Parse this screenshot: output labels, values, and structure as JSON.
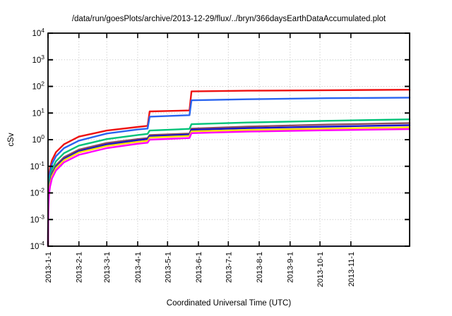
{
  "title": "/data/run/goesPlots/archive/2013-12-29/flux/../bryn/366daysEarthDataAccumulated.plot",
  "colors": {
    "background": "#ffffff",
    "frame": "#000000",
    "grid": "#bdbdbd",
    "text": "#000000"
  },
  "chart_data": {
    "type": "line",
    "title": "/data/run/goesPlots/archive/2013-12-29/flux/../bryn/366daysEarthDataAccumulated.plot",
    "xlabel": "Coordinated Universal Time (UTC)",
    "ylabel": "cSv",
    "grid": true,
    "legend": "none",
    "x_axis": {
      "start_label": "2013-1-1",
      "end_day": 363,
      "tick_days": [
        0,
        31,
        59,
        90,
        120,
        151,
        181,
        212,
        243,
        273,
        304
      ],
      "tick_labels": [
        "2013-1-1",
        "2013-2-1",
        "2013-3-1",
        "2013-4-1",
        "2013-5-1",
        "2013-6-1",
        "2013-7-1",
        "2013-8-1",
        "2013-9-1",
        "2013-10-1",
        "2013-11-1"
      ]
    },
    "y_axis": {
      "scale": "log10",
      "min": 0.0001,
      "max": 10000,
      "tick_exponents": [
        4,
        3,
        2,
        1,
        0,
        -1,
        -2,
        -3,
        -4
      ],
      "unit": "cSv"
    },
    "step_days": [
      101,
      143
    ],
    "series": [
      {
        "name": "red",
        "color": "#ee1111",
        "points": [
          [
            0.003,
            0.0001
          ],
          [
            0.25,
            0.01
          ],
          [
            1,
            0.042
          ],
          [
            2,
            0.084
          ],
          [
            4,
            0.17
          ],
          [
            8,
            0.34
          ],
          [
            16,
            0.67
          ],
          [
            31,
            1.3
          ],
          [
            59,
            2.2
          ],
          [
            90,
            3.0
          ],
          [
            100,
            3.3
          ],
          [
            102,
            11.5
          ],
          [
            142,
            12.5
          ],
          [
            144,
            65
          ],
          [
            200,
            69
          ],
          [
            280,
            72
          ],
          [
            363,
            75
          ]
        ]
      },
      {
        "name": "blue",
        "color": "#2964f0",
        "points": [
          [
            0.003,
            0.0001
          ],
          [
            0.25,
            0.0075
          ],
          [
            1,
            0.03
          ],
          [
            2,
            0.06
          ],
          [
            4,
            0.12
          ],
          [
            8,
            0.24
          ],
          [
            16,
            0.48
          ],
          [
            31,
            0.92
          ],
          [
            59,
            1.7
          ],
          [
            90,
            2.4
          ],
          [
            100,
            2.6
          ],
          [
            102,
            7.3
          ],
          [
            142,
            8.3
          ],
          [
            144,
            30
          ],
          [
            200,
            33
          ],
          [
            280,
            36
          ],
          [
            363,
            38
          ]
        ]
      },
      {
        "name": "spring-green",
        "color": "#00c278",
        "points": [
          [
            0.003,
            0.0001
          ],
          [
            0.25,
            0.005
          ],
          [
            1,
            0.019
          ],
          [
            2,
            0.039
          ],
          [
            4,
            0.077
          ],
          [
            8,
            0.155
          ],
          [
            16,
            0.31
          ],
          [
            31,
            0.6
          ],
          [
            59,
            1.05
          ],
          [
            90,
            1.5
          ],
          [
            100,
            1.65
          ],
          [
            102,
            2.2
          ],
          [
            142,
            2.55
          ],
          [
            144,
            3.8
          ],
          [
            200,
            4.4
          ],
          [
            280,
            5.1
          ],
          [
            363,
            5.8
          ]
        ]
      },
      {
        "name": "brown",
        "color": "#8e4d5c",
        "points": [
          [
            0.003,
            0.0001
          ],
          [
            0.25,
            0.0034
          ],
          [
            1,
            0.0135
          ],
          [
            2,
            0.027
          ],
          [
            4,
            0.054
          ],
          [
            8,
            0.11
          ],
          [
            16,
            0.22
          ],
          [
            31,
            0.42
          ],
          [
            59,
            0.75
          ],
          [
            90,
            1.05
          ],
          [
            100,
            1.15
          ],
          [
            102,
            1.5
          ],
          [
            142,
            1.7
          ],
          [
            144,
            2.6
          ],
          [
            200,
            3.1
          ],
          [
            280,
            3.7
          ],
          [
            363,
            4.2
          ]
        ]
      },
      {
        "name": "navy",
        "color": "#1515cd",
        "points": [
          [
            0.003,
            0.0001
          ],
          [
            0.25,
            0.003
          ],
          [
            1,
            0.012
          ],
          [
            2,
            0.024
          ],
          [
            4,
            0.048
          ],
          [
            8,
            0.095
          ],
          [
            16,
            0.19
          ],
          [
            31,
            0.37
          ],
          [
            59,
            0.66
          ],
          [
            90,
            0.95
          ],
          [
            100,
            1.05
          ],
          [
            102,
            1.35
          ],
          [
            142,
            1.55
          ],
          [
            144,
            2.35
          ],
          [
            200,
            2.7
          ],
          [
            280,
            3.1
          ],
          [
            363,
            3.5
          ]
        ]
      },
      {
        "name": "yellow",
        "color": "#ffdf00",
        "points": [
          [
            0.003,
            0.0001
          ],
          [
            0.25,
            0.0027
          ],
          [
            1,
            0.0106
          ],
          [
            2,
            0.021
          ],
          [
            4,
            0.043
          ],
          [
            8,
            0.085
          ],
          [
            16,
            0.17
          ],
          [
            31,
            0.33
          ],
          [
            59,
            0.58
          ],
          [
            90,
            0.83
          ],
          [
            100,
            0.9
          ],
          [
            102,
            1.2
          ],
          [
            142,
            1.38
          ],
          [
            144,
            2.05
          ],
          [
            200,
            2.3
          ],
          [
            280,
            2.6
          ],
          [
            363,
            2.9
          ]
        ]
      },
      {
        "name": "magenta",
        "color": "#ff00ff",
        "points": [
          [
            0.003,
            0.0001
          ],
          [
            0.25,
            0.0022
          ],
          [
            1,
            0.0087
          ],
          [
            2,
            0.017
          ],
          [
            4,
            0.035
          ],
          [
            8,
            0.07
          ],
          [
            16,
            0.14
          ],
          [
            31,
            0.27
          ],
          [
            59,
            0.48
          ],
          [
            90,
            0.7
          ],
          [
            100,
            0.77
          ],
          [
            102,
            1.0
          ],
          [
            142,
            1.15
          ],
          [
            144,
            1.75
          ],
          [
            200,
            2.0
          ],
          [
            280,
            2.25
          ],
          [
            363,
            2.5
          ]
        ]
      }
    ]
  }
}
